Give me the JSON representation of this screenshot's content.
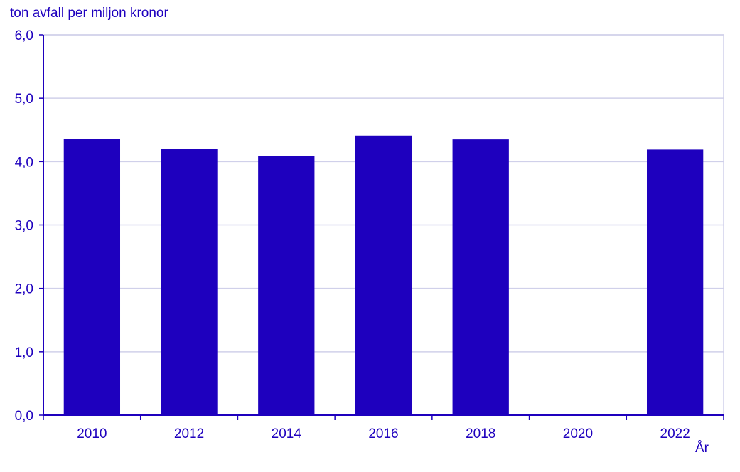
{
  "chart_data": {
    "type": "bar",
    "ylabel": "ton avfall  per miljon kronor",
    "xlabel": "År",
    "categories": [
      "2010",
      "2012",
      "2014",
      "2016",
      "2018",
      "2020",
      "2022"
    ],
    "values": [
      4.36,
      4.2,
      4.09,
      4.41,
      4.35,
      0,
      4.19
    ],
    "ylim": [
      0,
      6
    ],
    "yticks": [
      "0,0",
      "1,0",
      "2,0",
      "3,0",
      "4,0",
      "5,0",
      "6,0"
    ],
    "grid": true,
    "colors": {
      "bar": "#1e00be",
      "grid": "#d0d0ea",
      "axis": "#1e00be",
      "text": "#1e00be"
    }
  }
}
